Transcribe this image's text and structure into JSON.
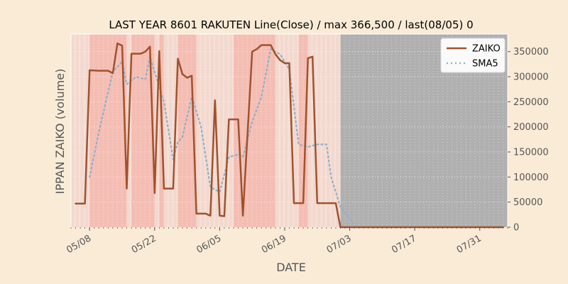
{
  "chart_data": {
    "type": "line",
    "title": "LAST YEAR 8601 RAKUTEN Line(Close) / max 366,500 / last(08/05) 0",
    "xlabel": "DATE",
    "ylabel": "IPPAN ZAIKO (volume)",
    "x_ticks": [
      "05/08",
      "05/22",
      "06/05",
      "06/19",
      "07/03",
      "07/17",
      "07/31"
    ],
    "y_ticks": [
      "0",
      "50000",
      "100000",
      "150000",
      "200000",
      "250000",
      "300000",
      "350000"
    ],
    "ylim": [
      0,
      385000
    ],
    "xlim": [
      "2024-05-04",
      "2024-08-06"
    ],
    "legend_position": "top-right",
    "colors": {
      "background": "#faebd7",
      "zaiko": "#a0522d",
      "sma5": "#8fb0c8",
      "band": "#f4b8ae",
      "no_data": "#b0b0b0"
    },
    "no_data_from": "2024-07-01",
    "highlight_bands": [
      [
        "2024-05-08",
        "2024-05-16"
      ],
      [
        "2024-05-17",
        "2024-05-22"
      ],
      [
        "2024-05-23",
        "2024-05-24"
      ],
      [
        "2024-05-27",
        "2024-05-31"
      ],
      [
        "2024-06-08",
        "2024-06-17"
      ],
      [
        "2024-06-22",
        "2024-06-24"
      ]
    ],
    "series": [
      {
        "name": "ZAIKO",
        "points": [
          [
            "2024-05-05",
            47000
          ],
          [
            "2024-05-07",
            47000
          ],
          [
            "2024-05-08",
            313000
          ],
          [
            "2024-05-10",
            312000
          ],
          [
            "2024-05-12",
            312000
          ],
          [
            "2024-05-13",
            307000
          ],
          [
            "2024-05-14",
            366500
          ],
          [
            "2024-05-15",
            362000
          ],
          [
            "2024-05-16",
            77000
          ],
          [
            "2024-05-17",
            346000
          ],
          [
            "2024-05-19",
            346000
          ],
          [
            "2024-05-20",
            350000
          ],
          [
            "2024-05-21",
            360000
          ],
          [
            "2024-05-22",
            68000
          ],
          [
            "2024-05-23",
            351000
          ],
          [
            "2024-05-24",
            77000
          ],
          [
            "2024-05-26",
            77000
          ],
          [
            "2024-05-27",
            336000
          ],
          [
            "2024-05-28",
            305000
          ],
          [
            "2024-05-29",
            298000
          ],
          [
            "2024-05-30",
            302000
          ],
          [
            "2024-05-31",
            27000
          ],
          [
            "2024-06-02",
            27000
          ],
          [
            "2024-06-03",
            23000
          ],
          [
            "2024-06-04",
            253000
          ],
          [
            "2024-06-05",
            23000
          ],
          [
            "2024-06-06",
            22000
          ],
          [
            "2024-06-07",
            215000
          ],
          [
            "2024-06-09",
            215000
          ],
          [
            "2024-06-10",
            23000
          ],
          [
            "2024-06-12",
            350000
          ],
          [
            "2024-06-13",
            355000
          ],
          [
            "2024-06-14",
            363000
          ],
          [
            "2024-06-16",
            363000
          ],
          [
            "2024-06-17",
            345000
          ],
          [
            "2024-06-18",
            333000
          ],
          [
            "2024-06-19",
            327000
          ],
          [
            "2024-06-20",
            327000
          ],
          [
            "2024-06-21",
            48000
          ],
          [
            "2024-06-23",
            48000
          ],
          [
            "2024-06-24",
            337000
          ],
          [
            "2024-06-25",
            340000
          ],
          [
            "2024-06-26",
            48000
          ],
          [
            "2024-06-30",
            48000
          ],
          [
            "2024-07-01",
            0
          ],
          [
            "2024-08-05",
            0
          ]
        ]
      },
      {
        "name": "SMA5",
        "points": [
          [
            "2024-05-08",
            100000
          ],
          [
            "2024-05-10",
            190000
          ],
          [
            "2024-05-12",
            270000
          ],
          [
            "2024-05-13",
            310000
          ],
          [
            "2024-05-15",
            330000
          ],
          [
            "2024-05-16",
            285000
          ],
          [
            "2024-05-18",
            300000
          ],
          [
            "2024-05-20",
            295000
          ],
          [
            "2024-05-21",
            340000
          ],
          [
            "2024-05-22",
            310000
          ],
          [
            "2024-05-24",
            250000
          ],
          [
            "2024-05-26",
            135000
          ],
          [
            "2024-05-27",
            170000
          ],
          [
            "2024-05-28",
            180000
          ],
          [
            "2024-05-30",
            260000
          ],
          [
            "2024-06-01",
            200000
          ],
          [
            "2024-06-03",
            80000
          ],
          [
            "2024-06-05",
            70000
          ],
          [
            "2024-06-07",
            140000
          ],
          [
            "2024-06-09",
            145000
          ],
          [
            "2024-06-10",
            140000
          ],
          [
            "2024-06-12",
            210000
          ],
          [
            "2024-06-14",
            260000
          ],
          [
            "2024-06-16",
            355000
          ],
          [
            "2024-06-18",
            345000
          ],
          [
            "2024-06-20",
            315000
          ],
          [
            "2024-06-22",
            165000
          ],
          [
            "2024-06-24",
            160000
          ],
          [
            "2024-06-26",
            165000
          ],
          [
            "2024-06-28",
            165000
          ],
          [
            "2024-06-29",
            100000
          ],
          [
            "2024-07-01",
            40000
          ],
          [
            "2024-07-03",
            18000
          ],
          [
            "2024-07-04",
            2000
          ],
          [
            "2024-07-05",
            0
          ],
          [
            "2024-08-05",
            0
          ]
        ]
      }
    ]
  }
}
